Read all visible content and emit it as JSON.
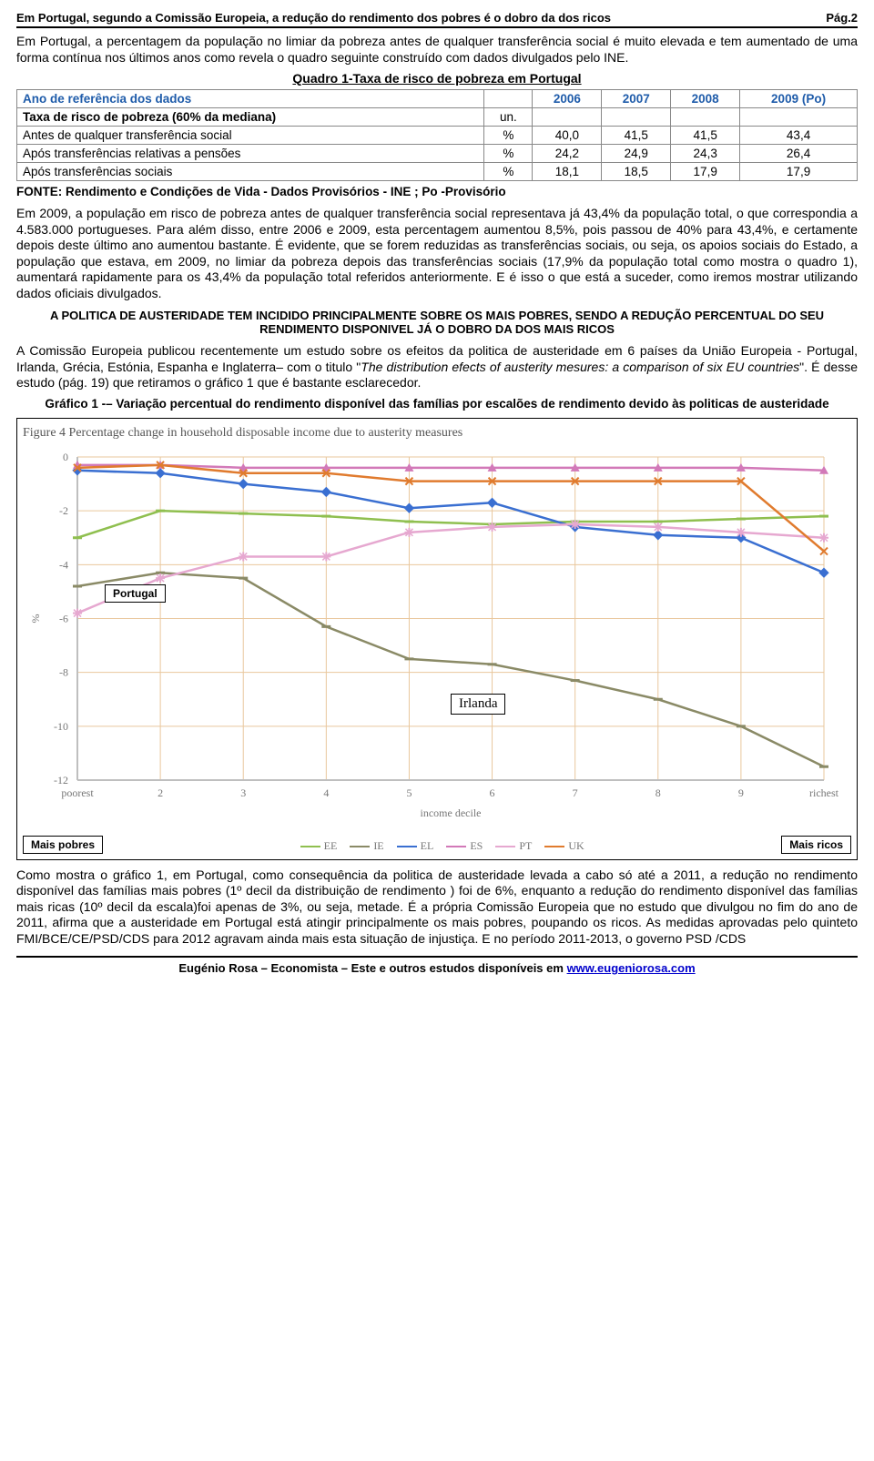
{
  "header": {
    "title": "Em Portugal, segundo a Comissão Europeia, a redução do rendimento dos pobres é o dobro da dos ricos",
    "page": "Pág.2"
  },
  "p1": "Em Portugal, a percentagem da população no limiar da pobreza antes de qualquer transferência social é muito elevada e tem aumentado de uma forma contínua nos últimos anos como revela o quadro seguinte construído com dados divulgados pelo INE.",
  "table1": {
    "title": "Quadro 1-Taxa de risco de pobreza em Portugal",
    "head_label": "Ano de referência dos dados",
    "years": [
      "2006",
      "2007",
      "2008",
      "2009 (Po)"
    ],
    "rows": [
      {
        "label": "Taxa de risco de pobreza (60% da mediana)",
        "unit": "un.",
        "vals": [
          "",
          "",
          "",
          ""
        ],
        "bold": true
      },
      {
        "label": "Antes de qualquer transferência social",
        "unit": "%",
        "vals": [
          "40,0",
          "41,5",
          "41,5",
          "43,4"
        ],
        "indent": true
      },
      {
        "label": "Após transferências relativas a pensões",
        "unit": "%",
        "vals": [
          "24,2",
          "24,9",
          "24,3",
          "26,4"
        ],
        "indent": true
      },
      {
        "label": "Após transferências sociais",
        "unit": "%",
        "vals": [
          "18,1",
          "18,5",
          "17,9",
          "17,9"
        ],
        "indent": true
      }
    ],
    "source": "FONTE: Rendimento e Condições de Vida - Dados Provisórios - INE ; Po -Provisório"
  },
  "p2": "Em 2009, a população em risco de pobreza antes de qualquer transferência social representava já 43,4% da população total, o que correspondia a 4.583.000 portugueses. Para além disso, entre 2006 e 2009, esta percentagem aumentou 8,5%, pois passou de 40% para 43,4%, e certamente depois deste último ano aumentou bastante. É evidente, que se forem reduzidas as transferências sociais, ou seja, os apoios sociais do Estado, a população que estava, em 2009, no limiar da pobreza depois das transferências sociais (17,9% da população total como mostra o quadro 1), aumentará rapidamente para os 43,4% da população total referidos anteriormente.  E é isso o que está a suceder, como iremos mostrar utilizando dados oficiais divulgados.",
  "section_head": "A POLITICA DE AUSTERIDADE TEM INCIDIDO PRINCIPALMENTE SOBRE OS MAIS POBRES, SENDO A REDUÇÃO PERCENTUAL DO SEU RENDIMENTO DISPONIVEL JÁ O DOBRO DA DOS MAIS RICOS",
  "p3a": "A Comissão Europeia publicou recentemente um estudo sobre os efeitos da politica de austeridade em 6 países da União Europeia - Portugal, Irlanda, Grécia, Estónia, Espanha e Inglaterra– com o titulo \"",
  "p3i": "The distribution efects of austerity mesures: a comparison of six EU countries",
  "p3b": "\". É desse estudo (pág. 19) que retiramos o gráfico 1 que é bastante esclarecedor.",
  "chart_caption": "Gráfico 1 -– Variação percentual do rendimento disponível das famílias por escalões de rendimento devido às politicas de austeridade",
  "chart": {
    "type": "line",
    "fig_title": "Figure 4 Percentage change in household disposable income due to austerity measures",
    "x_categories": [
      "poorest",
      "2",
      "3",
      "4",
      "5",
      "6",
      "7",
      "8",
      "9",
      "richest"
    ],
    "x_axis_label": "income decile",
    "y_label": "%",
    "ylim": [
      -12,
      0
    ],
    "ytick_step": 2,
    "grid_color": "#e9c79d",
    "background": "#ffffff",
    "axis_color": "#bfbfbf",
    "tick_font": {
      "family": "Comic Sans MS",
      "size": 12,
      "color": "#777"
    },
    "series": [
      {
        "name": "EE",
        "color": "#8fbf4f",
        "marker": "dash",
        "values": [
          -3.0,
          -2.0,
          -2.1,
          -2.2,
          -2.4,
          -2.5,
          -2.4,
          -2.4,
          -2.3,
          -2.2
        ]
      },
      {
        "name": "IE",
        "color": "#8a8a66",
        "marker": "dash",
        "values": [
          -4.8,
          -4.3,
          -4.5,
          -6.3,
          -7.5,
          -7.7,
          -8.3,
          -9.0,
          -10.0,
          -11.5
        ]
      },
      {
        "name": "EL",
        "color": "#3a6fd1",
        "marker": "diamond",
        "values": [
          -0.5,
          -0.6,
          -1.0,
          -1.3,
          -1.9,
          -1.7,
          -2.6,
          -2.9,
          -3.0,
          -4.3
        ]
      },
      {
        "name": "ES",
        "color": "#d279b8",
        "marker": "triangle",
        "values": [
          -0.3,
          -0.3,
          -0.4,
          -0.4,
          -0.4,
          -0.4,
          -0.4,
          -0.4,
          -0.4,
          -0.5
        ]
      },
      {
        "name": "PT",
        "color": "#e6a8d0",
        "marker": "star",
        "values": [
          -5.8,
          -4.5,
          -3.7,
          -3.7,
          -2.8,
          -2.6,
          -2.5,
          -2.6,
          -2.8,
          -3.0
        ]
      },
      {
        "name": "UK",
        "color": "#e07b2e",
        "marker": "x",
        "values": [
          -0.4,
          -0.3,
          -0.6,
          -0.6,
          -0.9,
          -0.9,
          -0.9,
          -0.9,
          -0.9,
          -3.5
        ]
      }
    ],
    "annotations": {
      "portugal": "Portugal",
      "irlanda": "Irlanda",
      "mais_pobres": "Mais pobres",
      "mais_ricos": "Mais ricos"
    }
  },
  "p4": "Como mostra o gráfico 1, em Portugal, como consequência da politica de austeridade levada a cabo só até a 2011, a redução no rendimento disponível das famílias mais pobres (1º decil da distribuição de rendimento ) foi de 6%, enquanto a redução do rendimento disponível das famílias mais ricas (10º decil da escala)foi apenas de 3%, ou seja, metade. É a própria Comissão Europeia que no estudo que divulgou no fim do ano de 2011, afirma que a austeridade em Portugal está atingir principalmente os mais pobres, poupando os ricos. As medidas aprovadas pelo quinteto FMI/BCE/CE/PSD/CDS para 2012 agravam ainda mais esta situação de injustiça. E no período 2011-2013, o governo PSD /CDS",
  "footer": {
    "text": "Eugénio Rosa – Economista – Este e outros estudos disponíveis em ",
    "link": "www.eugeniorosa.com"
  }
}
